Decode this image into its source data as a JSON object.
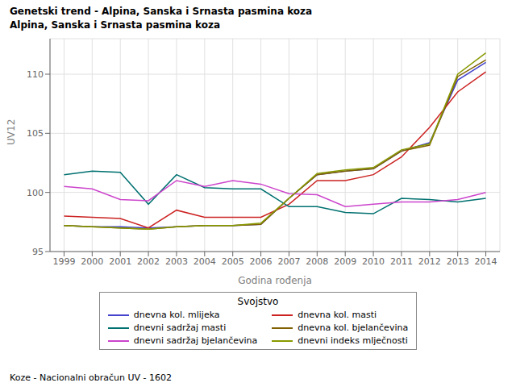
{
  "chart_data": {
    "type": "line",
    "title": "Genetski trend - Alpina, Sanska i Srnasta pasmina koza",
    "subtitle": "Alpina, Sanska i Srnasta pasmina koza",
    "xlabel": "Godina rođenja",
    "ylabel": "UV12",
    "footnote": "Koze - Nacionalni obračun UV - 1602",
    "legend_title": "Svojstvo",
    "x": [
      1999,
      2000,
      2001,
      2002,
      2003,
      2004,
      2005,
      2006,
      2007,
      2008,
      2009,
      2010,
      2011,
      2012,
      2013,
      2014
    ],
    "xlim": [
      1998.5,
      2014.5
    ],
    "xticks": [
      1999,
      2000,
      2001,
      2002,
      2003,
      2004,
      2005,
      2006,
      2007,
      2008,
      2009,
      2010,
      2011,
      2012,
      2013,
      2014
    ],
    "ylim": [
      95,
      113
    ],
    "yticks": [
      95,
      100,
      105,
      110
    ],
    "grid": true,
    "series": [
      {
        "name": "dnevna kol. mlijeka",
        "color": "#4444cc",
        "values": [
          97.2,
          97.1,
          97.1,
          97.0,
          97.1,
          97.2,
          97.2,
          97.3,
          99.5,
          101.5,
          101.8,
          102.0,
          103.5,
          104.2,
          109.5,
          111.0
        ]
      },
      {
        "name": "dnevna kol. masti",
        "color": "#cc2222",
        "values": [
          98.0,
          97.9,
          97.8,
          97.0,
          98.5,
          97.9,
          97.9,
          97.9,
          99.0,
          101.0,
          101.0,
          101.5,
          103.0,
          105.5,
          108.5,
          110.2
        ]
      },
      {
        "name": "dnevni sadržaj masti",
        "color": "#007070",
        "values": [
          101.5,
          101.8,
          101.7,
          99.0,
          101.5,
          100.4,
          100.3,
          100.3,
          98.8,
          98.8,
          98.3,
          98.2,
          99.5,
          99.4,
          99.2,
          99.5
        ]
      },
      {
        "name": "dnevna kol. bjelančevina",
        "color": "#806000",
        "values": [
          97.2,
          97.1,
          97.0,
          96.9,
          97.1,
          97.2,
          97.2,
          97.3,
          99.5,
          101.5,
          101.8,
          102.0,
          103.5,
          104.0,
          109.8,
          111.2
        ]
      },
      {
        "name": "dnevni sadržaj bjelančevina",
        "color": "#cc44cc",
        "values": [
          100.5,
          100.3,
          99.4,
          99.3,
          101.0,
          100.5,
          101.0,
          100.7,
          99.9,
          99.8,
          98.8,
          99.0,
          99.2,
          99.2,
          99.4,
          100.0
        ]
      },
      {
        "name": "dnevni indeks mlječnosti",
        "color": "#889900",
        "values": [
          97.2,
          97.1,
          97.0,
          96.9,
          97.1,
          97.2,
          97.2,
          97.4,
          99.5,
          101.6,
          101.9,
          102.1,
          103.6,
          104.1,
          110.0,
          111.8
        ]
      }
    ]
  }
}
